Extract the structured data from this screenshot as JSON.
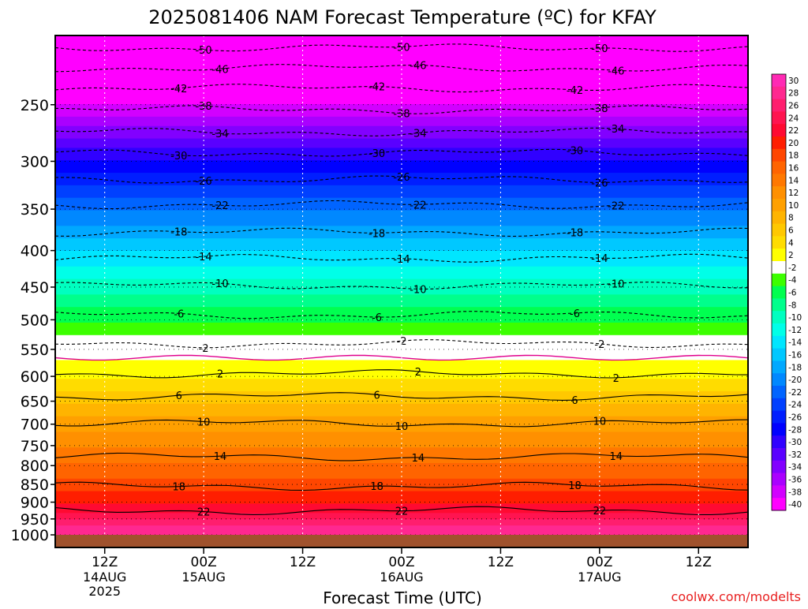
{
  "chart_data": {
    "type": "heatmap",
    "title": "2025081406 NAM Forecast Temperature (ºC) for KFAY",
    "xlabel": "Forecast Time (UTC)",
    "ylabel": "",
    "credit": "coolwx.com/modelts",
    "x_ticks": [
      {
        "hour": 6,
        "label": "12Z",
        "date": "14AUG",
        "year": "2025"
      },
      {
        "hour": 18,
        "label": "00Z",
        "date": "15AUG",
        "year": ""
      },
      {
        "hour": 30,
        "label": "12Z",
        "date": "",
        "year": ""
      },
      {
        "hour": 42,
        "label": "00Z",
        "date": "16AUG",
        "year": ""
      },
      {
        "hour": 54,
        "label": "12Z",
        "date": "",
        "year": ""
      },
      {
        "hour": 66,
        "label": "00Z",
        "date": "17AUG",
        "year": ""
      },
      {
        "hour": 78,
        "label": "12Z",
        "date": "",
        "year": ""
      }
    ],
    "xlim": [
      0,
      84
    ],
    "y_ticks": [
      250,
      300,
      350,
      400,
      450,
      500,
      550,
      600,
      650,
      700,
      750,
      800,
      850,
      900,
      950,
      1000
    ],
    "ylim_hPa": [
      200,
      1000
    ],
    "y_scale": "log",
    "grid": true,
    "colorbar_labels": [
      "30",
      "28",
      "26",
      "24",
      "22",
      "20",
      "18",
      "16",
      "14",
      "12",
      "10",
      "8",
      "6",
      "4",
      "2",
      "-2",
      "-4",
      "-6",
      "-8",
      "-10",
      "-12",
      "-14",
      "-16",
      "-18",
      "-20",
      "-22",
      "-24",
      "-26",
      "-28",
      "-30",
      "-32",
      "-34",
      "-36",
      "-38",
      "-40"
    ],
    "colorbar_colors": [
      "#ff2ab4",
      "#ff2890",
      "#ff1e6e",
      "#ff1450",
      "#ff0a32",
      "#ff1e00",
      "#ff4600",
      "#ff6400",
      "#ff7800",
      "#ff9000",
      "#ffa000",
      "#ffb400",
      "#ffc800",
      "#ffdc00",
      "#ffff00",
      "#ffffff",
      "#3cff00",
      "#00ff50",
      "#00ff8c",
      "#00ffc0",
      "#00ffe8",
      "#00e6ff",
      "#00c8ff",
      "#00a8ff",
      "#0088ff",
      "#0064ff",
      "#0040ff",
      "#001eff",
      "#0000ff",
      "#3000ff",
      "#5a00ff",
      "#8200ff",
      "#aa00ff",
      "#d200ff",
      "#ff00ff"
    ],
    "contour_levels": [
      {
        "temp": -50,
        "hPa": 208
      },
      {
        "temp": -46,
        "hPa": 222
      },
      {
        "temp": -42,
        "hPa": 237
      },
      {
        "temp": -38,
        "hPa": 254
      },
      {
        "temp": -34,
        "hPa": 273
      },
      {
        "temp": -30,
        "hPa": 292
      },
      {
        "temp": -26,
        "hPa": 318
      },
      {
        "temp": -22,
        "hPa": 345
      },
      {
        "temp": -18,
        "hPa": 377
      },
      {
        "temp": -14,
        "hPa": 410
      },
      {
        "temp": -10,
        "hPa": 448
      },
      {
        "temp": -6,
        "hPa": 492
      },
      {
        "temp": -2,
        "hPa": 540
      },
      {
        "temp": 2,
        "hPa": 595
      },
      {
        "temp": 6,
        "hPa": 640
      },
      {
        "temp": 10,
        "hPa": 698
      },
      {
        "temp": 14,
        "hPa": 778
      },
      {
        "temp": 18,
        "hPa": 855
      },
      {
        "temp": 22,
        "hPa": 925
      }
    ],
    "ground_label": ""
  }
}
